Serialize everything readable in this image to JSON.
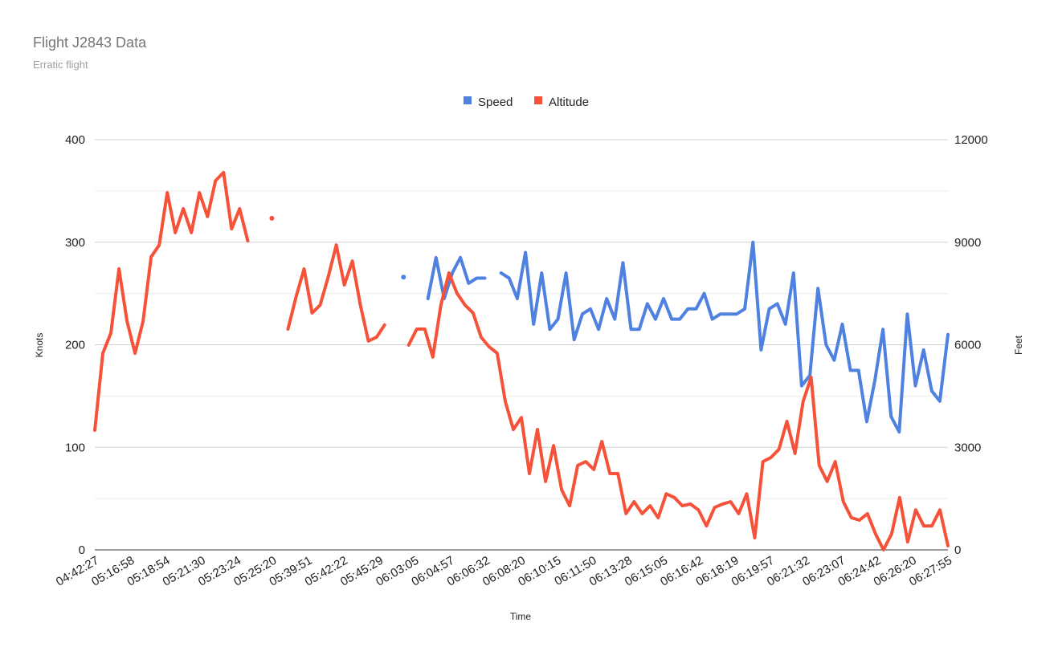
{
  "chart_data": {
    "type": "line",
    "title": "Flight J2843 Data",
    "subtitle": "Erratic flight",
    "xlabel": "Time",
    "ylabel_left": "Knots",
    "ylabel_right": "Feet",
    "ylim_left": [
      0,
      400
    ],
    "ylim_right": [
      0,
      12000
    ],
    "yticks_left": [
      "0",
      "100",
      "200",
      "300",
      "400"
    ],
    "yticks_right": [
      "0",
      "3000",
      "6000",
      "9000",
      "12000"
    ],
    "grid": true,
    "legend_position": "top-center",
    "x_tick_labels": [
      "04:42:27",
      "05:16:58",
      "05:18:54",
      "05:21:30",
      "05:23:24",
      "05:25:20",
      "05:39:51",
      "05:42:22",
      "05:45:29",
      "06:03:05",
      "06:04:57",
      "06:06:32",
      "06:08:20",
      "06:10:15",
      "06:11:50",
      "06:13:28",
      "06:15:05",
      "06:16:42",
      "06:18:19",
      "06:19:57",
      "06:21:32",
      "06:23:07",
      "06:24:42",
      "06:26:20",
      "06:27:55"
    ],
    "series": [
      {
        "name": "Speed",
        "axis": "left",
        "color": "#4f81e0",
        "values": [
          null,
          null,
          null,
          null,
          null,
          null,
          null,
          null,
          null,
          null,
          null,
          null,
          null,
          null,
          null,
          null,
          null,
          null,
          null,
          null,
          null,
          null,
          null,
          null,
          null,
          null,
          null,
          null,
          null,
          null,
          null,
          null,
          null,
          null,
          null,
          null,
          null,
          null,
          266,
          null,
          null,
          245,
          285,
          245,
          270,
          285,
          260,
          265,
          265,
          null,
          270,
          265,
          245,
          290,
          220,
          270,
          215,
          225,
          270,
          205,
          230,
          235,
          215,
          245,
          225,
          280,
          215,
          215,
          240,
          225,
          245,
          225,
          225,
          235,
          235,
          250,
          225,
          230,
          230,
          230,
          235,
          300,
          195,
          235,
          240,
          220,
          270,
          160,
          170,
          255,
          200,
          185,
          220,
          175,
          175,
          125,
          165,
          215,
          130,
          115,
          230,
          160,
          195,
          155,
          145,
          210
        ]
      },
      {
        "name": "Altitude",
        "axis": "right",
        "color": "#f6523a",
        "values": [
          3500,
          5750,
          6340,
          8220,
          6690,
          5750,
          6690,
          8570,
          8920,
          10450,
          9280,
          9980,
          9280,
          10450,
          9750,
          10800,
          11040,
          9390,
          9980,
          9040,
          null,
          null,
          9700,
          null,
          6460,
          7400,
          8220,
          6930,
          7160,
          7980,
          8920,
          7750,
          8450,
          7160,
          6110,
          6220,
          6580,
          null,
          null,
          5990,
          6460,
          6460,
          5640,
          7160,
          8100,
          7510,
          7160,
          6930,
          6220,
          5940,
          5750,
          4340,
          3520,
          3870,
          2230,
          3520,
          2000,
          3050,
          1760,
          1290,
          2470,
          2580,
          2350,
          3170,
          2230,
          2230,
          1060,
          1410,
          1060,
          1290,
          940,
          1640,
          1530,
          1290,
          1340,
          1170,
          700,
          1240,
          1340,
          1410,
          1060,
          1640,
          350,
          2580,
          2700,
          2940,
          3760,
          2820,
          4340,
          5050,
          2470,
          2000,
          2580,
          1410,
          940,
          870,
          1060,
          470,
          0,
          470,
          1530,
          230,
          1170,
          700,
          700,
          1170,
          120
        ]
      }
    ]
  }
}
